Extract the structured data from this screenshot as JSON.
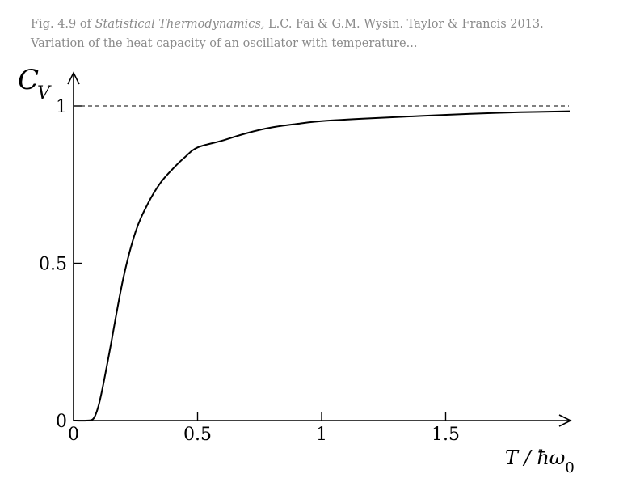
{
  "caption": {
    "prefix": "Fig. 4.9 of ",
    "book_title": "Statistical Thermodynamics,",
    "rest_line1": " L.C. Fai & G.M. Wysin.  Taylor & Francis 2013.",
    "line2": "Variation of the heat capacity of an oscillator with temperature..."
  },
  "chart_data": {
    "type": "line",
    "title": "",
    "ylabel": "C",
    "ylabel_sub": "V",
    "xlabel": "T / ħω",
    "xlabel_sub": "0",
    "xlim": [
      0,
      2.0
    ],
    "ylim": [
      0,
      1.0
    ],
    "x_ticks": [
      0,
      0.5,
      1,
      1.5
    ],
    "x_tick_labels": [
      "0",
      "0.5",
      "1",
      "1.5"
    ],
    "y_ticks": [
      0,
      0.5,
      1
    ],
    "y_tick_labels": [
      "0",
      "0.5",
      "1"
    ],
    "grid": false,
    "reference_line": {
      "y": 1,
      "style": "dashed"
    },
    "series": [
      {
        "x": [
          0.05,
          0.08,
          0.1,
          0.12,
          0.15,
          0.2,
          0.25,
          0.3,
          0.35,
          0.4,
          0.45,
          0.5,
          0.6,
          0.7,
          0.8,
          0.9,
          1.0,
          1.2,
          1.4,
          1.6,
          1.8,
          2.0
        ],
        "values": [
          0.0,
          0.006,
          0.045,
          0.115,
          0.24,
          0.45,
          0.6,
          0.69,
          0.755,
          0.8,
          0.838,
          0.868,
          0.89,
          0.914,
          0.932,
          0.943,
          0.952,
          0.961,
          0.968,
          0.975,
          0.98,
          0.983
        ]
      }
    ]
  }
}
